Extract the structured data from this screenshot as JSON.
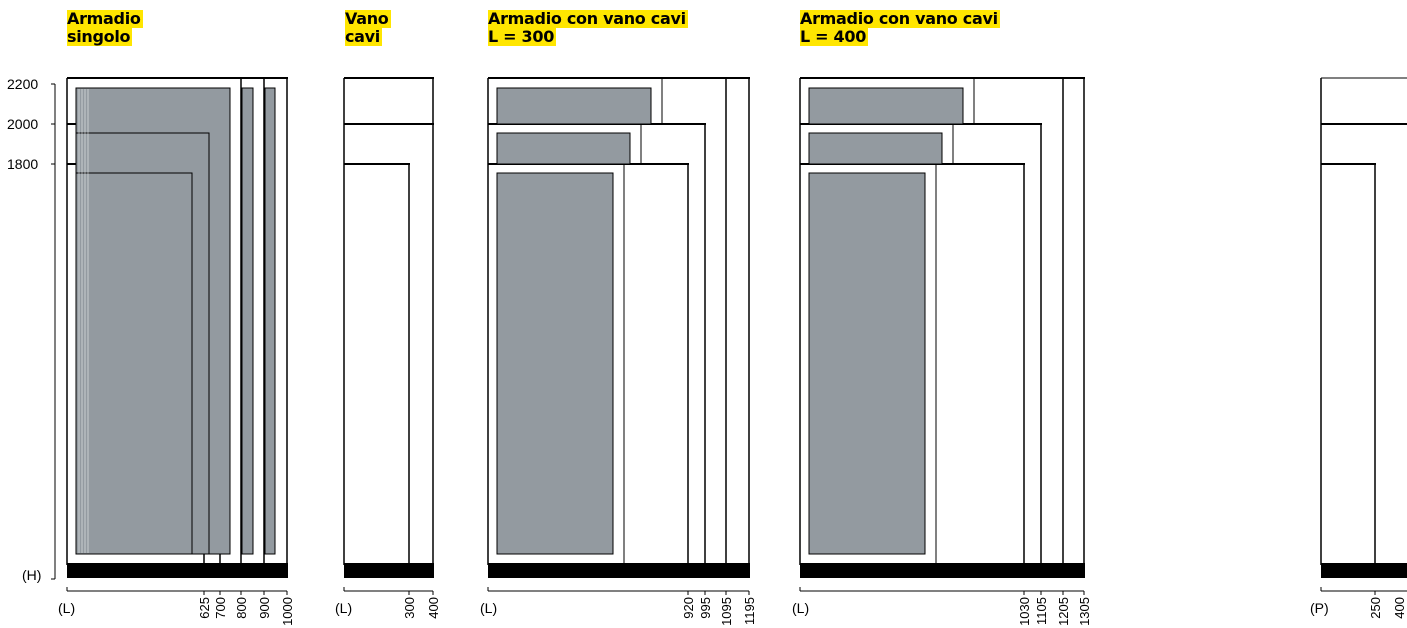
{
  "titles": {
    "single": [
      "Armadio",
      "singolo"
    ],
    "cable": [
      "Vano",
      "cavi"
    ],
    "combo300": [
      "Armadio con vano cavi",
      "L = 300"
    ],
    "combo400": [
      "Armadio con vano cavi",
      "L = 400"
    ]
  },
  "height_axis": {
    "label": "(H)",
    "ticks": [
      "2200",
      "2000",
      "1800"
    ]
  },
  "width_axes": {
    "single": {
      "label": "(L)",
      "ticks": [
        "625",
        "700",
        "800",
        "900",
        "1000"
      ]
    },
    "cable": {
      "label": "(L)",
      "ticks": [
        "300",
        "400"
      ]
    },
    "combo300": {
      "label": "(L)",
      "ticks": [
        "920",
        "995",
        "1095",
        "1195"
      ]
    },
    "combo400": {
      "label": "(L)",
      "ticks": [
        "1030",
        "1105",
        "1205",
        "1305"
      ]
    },
    "depth": {
      "label": "(P)",
      "ticks": [
        "250",
        "400"
      ]
    }
  },
  "colors": {
    "title_highlight": "#ffe600",
    "door_panel": "#939aa0",
    "outline": "#000000"
  }
}
